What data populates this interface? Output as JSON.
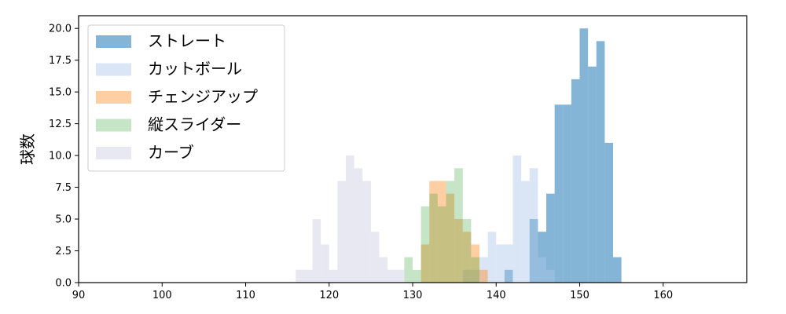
{
  "chart_data": {
    "type": "bar",
    "title": "",
    "xlabel": "",
    "ylabel": "球数",
    "xlim": [
      90,
      170
    ],
    "ylim": [
      0,
      21
    ],
    "xticks": [
      90,
      100,
      110,
      120,
      130,
      140,
      150,
      160
    ],
    "yticks": [
      0.0,
      2.5,
      5.0,
      7.5,
      10.0,
      12.5,
      15.0,
      17.5,
      20.0
    ],
    "ytick_labels": [
      "0.0",
      "2.5",
      "5.0",
      "7.5",
      "10.0",
      "12.5",
      "15.0",
      "17.5",
      "20.0"
    ],
    "grid": false,
    "legend_position": "top-left",
    "series": [
      {
        "name": "ストレート",
        "color": "#1f77b4",
        "opacity": 0.55,
        "bin_start": 140,
        "bin_width": 1.0,
        "values": [
          0,
          1,
          0,
          0,
          5,
          4,
          7,
          14,
          14,
          16,
          20,
          17,
          19,
          11,
          2
        ]
      },
      {
        "name": "カットボール",
        "color": "#aec7e8",
        "opacity": 0.45,
        "bin_start": 136,
        "bin_width": 1.0,
        "values": [
          1,
          1,
          2,
          4,
          3,
          3,
          10,
          8,
          9,
          2,
          1
        ]
      },
      {
        "name": "チェンジアップ",
        "color": "#ff7f0e",
        "opacity": 0.38,
        "bin_start": 131,
        "bin_width": 1.0,
        "values": [
          3,
          8,
          8,
          7,
          5,
          4,
          3,
          1
        ]
      },
      {
        "name": "縦スライダー",
        "color": "#2ca02c",
        "opacity": 0.27,
        "bin_start": 129,
        "bin_width": 1.0,
        "values": [
          2,
          1,
          6,
          7,
          6,
          8,
          9,
          5,
          2
        ]
      },
      {
        "name": "カーブ",
        "color": "#c5c5e0",
        "opacity": 0.4,
        "bin_start": 116,
        "bin_width": 1.0,
        "values": [
          1,
          1,
          5,
          3,
          1,
          8,
          10,
          9,
          8,
          4,
          2,
          1,
          1
        ]
      }
    ]
  }
}
